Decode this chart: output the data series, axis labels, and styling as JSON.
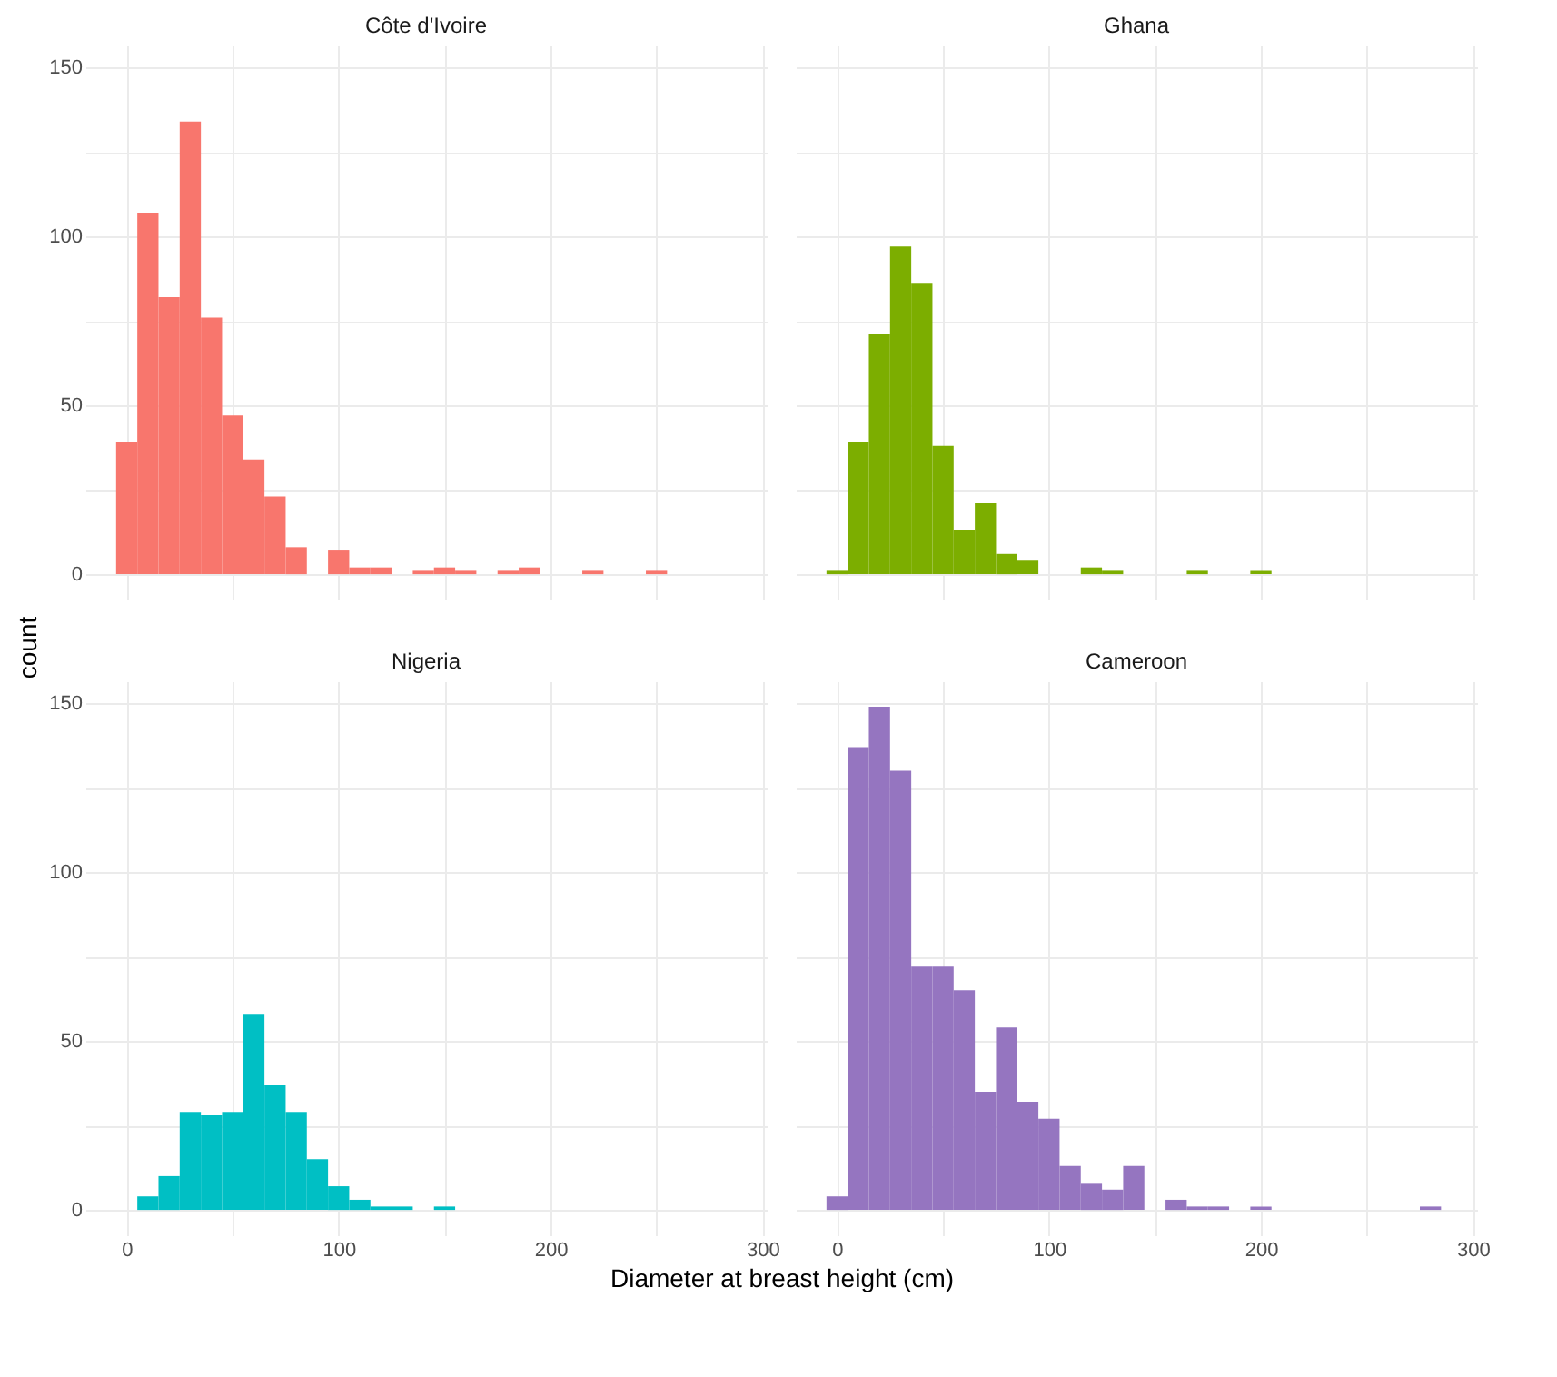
{
  "chart_data": [
    {
      "type": "histogram",
      "title": "Côte d'Ivoire",
      "ylabel": "count",
      "color": "#f8766d",
      "bins": [
        -5,
        5,
        15,
        25,
        35,
        45,
        55,
        65,
        75,
        85,
        95,
        105,
        115,
        125,
        135,
        145,
        155,
        165,
        175,
        185,
        195,
        205,
        215,
        225,
        235,
        245,
        255,
        265,
        275,
        285
      ],
      "values": [
        39,
        107,
        82,
        134,
        76,
        47,
        34,
        23,
        8,
        0,
        7,
        2,
        2,
        0,
        1,
        2,
        1,
        0,
        1,
        2,
        0,
        0,
        1,
        0,
        0,
        1,
        0,
        0,
        0
      ],
      "xlim": [
        -19.5,
        302
      ],
      "xticks": [
        0,
        {
          "value": 50,
          "label": null
        },
        100,
        {
          "value": 150,
          "label": null
        },
        200,
        {
          "value": 250,
          "label": null
        },
        300
      ],
      "ylim": [
        -7.5,
        156.5
      ],
      "yticks": [
        0,
        {
          "value": 25,
          "label": null
        },
        50,
        {
          "value": 75,
          "label": null
        },
        100,
        {
          "value": 125,
          "label": null
        },
        150
      ],
      "grid": true,
      "tick_labels": "y"
    },
    {
      "type": "histogram",
      "title": "Ghana",
      "color": "#7cae00",
      "bins": [
        -5,
        5,
        15,
        25,
        35,
        45,
        55,
        65,
        75,
        85,
        95,
        105,
        115,
        125,
        135,
        145,
        155,
        165,
        175,
        185,
        195,
        205,
        215,
        225,
        235,
        245,
        255,
        265,
        275,
        285
      ],
      "values": [
        1,
        39,
        71,
        97,
        86,
        38,
        13,
        21,
        6,
        4,
        0,
        0,
        2,
        1,
        0,
        0,
        0,
        1,
        0,
        0,
        1,
        0,
        0,
        0,
        0,
        0,
        0,
        0,
        0
      ],
      "xlim": [
        -19.5,
        302
      ],
      "xticks": [
        0,
        {
          "value": 50,
          "label": null
        },
        100,
        {
          "value": 150,
          "label": null
        },
        200,
        {
          "value": 250,
          "label": null
        },
        300
      ],
      "ylim": [
        -7.5,
        156.5
      ],
      "yticks": [
        0,
        {
          "value": 25,
          "label": null
        },
        50,
        {
          "value": 75,
          "label": null
        },
        100,
        {
          "value": 125,
          "label": null
        },
        150
      ],
      "grid": true,
      "tick_labels": false
    },
    {
      "type": "histogram",
      "title": "Nigeria",
      "xlabel": "Diameter at breast height (cm)",
      "color": "#00bfc4",
      "bins": [
        -5,
        5,
        15,
        25,
        35,
        45,
        55,
        65,
        75,
        85,
        95,
        105,
        115,
        125,
        135,
        145,
        155,
        165,
        175,
        185,
        195,
        205,
        215,
        225,
        235,
        245,
        255,
        265,
        275,
        285
      ],
      "values": [
        0,
        4,
        10,
        29,
        28,
        29,
        58,
        37,
        29,
        15,
        7,
        3,
        1,
        1,
        0,
        1,
        0,
        0,
        0,
        0,
        0,
        0,
        0,
        0,
        0,
        0,
        0,
        0,
        0
      ],
      "xlim": [
        -19.5,
        302
      ],
      "xticks": [
        0,
        {
          "value": 50,
          "label": null
        },
        100,
        {
          "value": 150,
          "label": null
        },
        200,
        {
          "value": 250,
          "label": null
        },
        300
      ],
      "ylim": [
        -7.5,
        156.5
      ],
      "yticks": [
        0,
        {
          "value": 25,
          "label": null
        },
        50,
        {
          "value": 75,
          "label": null
        },
        100,
        {
          "value": 125,
          "label": null
        },
        150
      ],
      "grid": true
    },
    {
      "type": "histogram",
      "title": "Cameroon",
      "color": "#9575c0",
      "bins": [
        -5,
        5,
        15,
        25,
        35,
        45,
        55,
        65,
        75,
        85,
        95,
        105,
        115,
        125,
        135,
        145,
        155,
        165,
        175,
        185,
        195,
        205,
        215,
        225,
        235,
        245,
        255,
        265,
        275,
        285
      ],
      "values": [
        4,
        137,
        149,
        130,
        72,
        72,
        65,
        35,
        54,
        32,
        27,
        13,
        8,
        6,
        13,
        0,
        3,
        1,
        1,
        0,
        1,
        0,
        0,
        0,
        0,
        0,
        0,
        0,
        1
      ],
      "xlim": [
        -19.5,
        302
      ],
      "xticks": [
        0,
        {
          "value": 50,
          "label": null
        },
        100,
        {
          "value": 150,
          "label": null
        },
        200,
        {
          "value": 250,
          "label": null
        },
        300
      ],
      "ylim": [
        -7.5,
        156.5
      ],
      "yticks": [
        0,
        {
          "value": 25,
          "label": null
        },
        50,
        {
          "value": 75,
          "label": null
        },
        100,
        {
          "value": 125,
          "label": null
        },
        150
      ],
      "grid": true,
      "tick_labels": "x"
    }
  ]
}
